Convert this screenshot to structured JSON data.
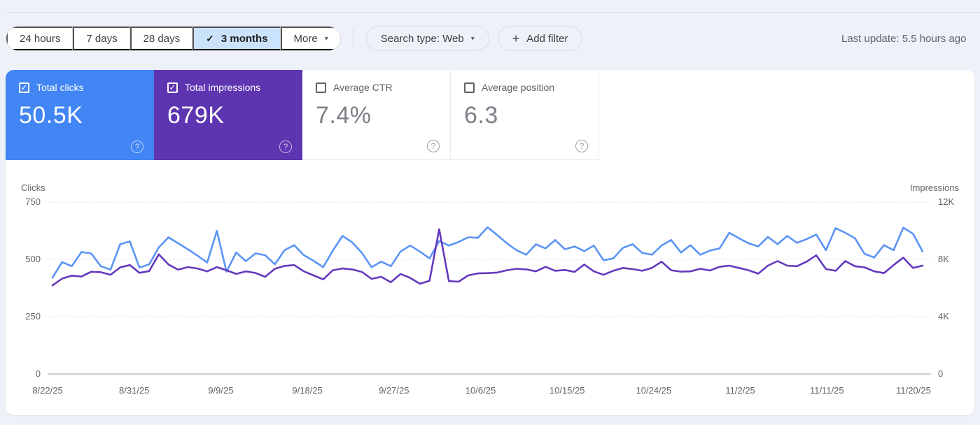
{
  "icons": {
    "check": "✓",
    "caret": "▾",
    "plus": "+",
    "help": "?"
  },
  "toolbar": {
    "date_ranges": [
      {
        "label": "24 hours",
        "selected": false
      },
      {
        "label": "7 days",
        "selected": false
      },
      {
        "label": "28 days",
        "selected": false
      },
      {
        "label": "3 months",
        "selected": true
      }
    ],
    "more_label": "More",
    "search_type_label": "Search type: Web",
    "add_filter_label": "Add filter",
    "last_update": "Last update: 5.5 hours ago"
  },
  "metric_cards": [
    {
      "label": "Total clicks",
      "value": "50.5K",
      "checked": true,
      "color": "#4285f4"
    },
    {
      "label": "Total impressions",
      "value": "679K",
      "checked": true,
      "color": "#5e35b1"
    },
    {
      "label": "Average CTR",
      "value": "7.4%",
      "checked": false,
      "color": null
    },
    {
      "label": "Average position",
      "value": "6.3",
      "checked": false,
      "color": null
    }
  ],
  "chart_data": {
    "type": "line",
    "grid": "horizontal-dotted",
    "legend_position": "none",
    "left_axis": {
      "label": "Clicks",
      "ticks": [
        750,
        500,
        250,
        0
      ],
      "max": 750
    },
    "right_axis": {
      "label": "Impressions",
      "tick_labels": [
        "12K",
        "8K",
        "4K",
        "0"
      ],
      "max": 12000
    },
    "x_tick_labels": [
      "8/22/25",
      "8/31/25",
      "9/9/25",
      "9/18/25",
      "9/27/25",
      "10/6/25",
      "10/15/25",
      "10/24/25",
      "11/2/25",
      "11/11/25",
      "11/20/25"
    ],
    "series": [
      {
        "name": "Clicks",
        "axis": "left",
        "color": "#5b94f5",
        "values": [
          420,
          488,
          470,
          532,
          526,
          470,
          455,
          566,
          578,
          464,
          478,
          552,
          596,
          570,
          544,
          516,
          486,
          624,
          446,
          530,
          492,
          526,
          518,
          478,
          540,
          562,
          518,
          494,
          466,
          538,
          602,
          574,
          528,
          466,
          490,
          470,
          534,
          560,
          534,
          504,
          580,
          560,
          576,
          596,
          594,
          640,
          606,
          570,
          540,
          520,
          566,
          548,
          584,
          544,
          556,
          536,
          560,
          496,
          504,
          550,
          566,
          528,
          520,
          560,
          584,
          530,
          562,
          520,
          538,
          548,
          616,
          592,
          570,
          556,
          598,
          566,
          602,
          572,
          588,
          608,
          540,
          636,
          616,
          592,
          524,
          508,
          562,
          540,
          638,
          612,
          534
        ]
      },
      {
        "name": "Impressions",
        "axis": "right",
        "color": "#6539bd",
        "values": [
          6180,
          6660,
          6860,
          6800,
          7130,
          7100,
          6920,
          7440,
          7600,
          7060,
          7180,
          8350,
          7640,
          7280,
          7460,
          7360,
          7160,
          7460,
          7240,
          6980,
          7160,
          7050,
          6780,
          7340,
          7540,
          7600,
          7160,
          6880,
          6600,
          7240,
          7360,
          7300,
          7120,
          6640,
          6780,
          6400,
          6980,
          6700,
          6300,
          6500,
          10100,
          6480,
          6440,
          6880,
          7020,
          7040,
          7080,
          7240,
          7340,
          7300,
          7160,
          7480,
          7200,
          7260,
          7120,
          7640,
          7160,
          6920,
          7200,
          7400,
          7320,
          7200,
          7400,
          7840,
          7240,
          7140,
          7160,
          7340,
          7220,
          7480,
          7560,
          7400,
          7240,
          7000,
          7560,
          7880,
          7560,
          7520,
          7840,
          8280,
          7320,
          7200,
          7880,
          7520,
          7440,
          7160,
          7040,
          7600,
          8120,
          7400,
          7560
        ]
      }
    ]
  }
}
